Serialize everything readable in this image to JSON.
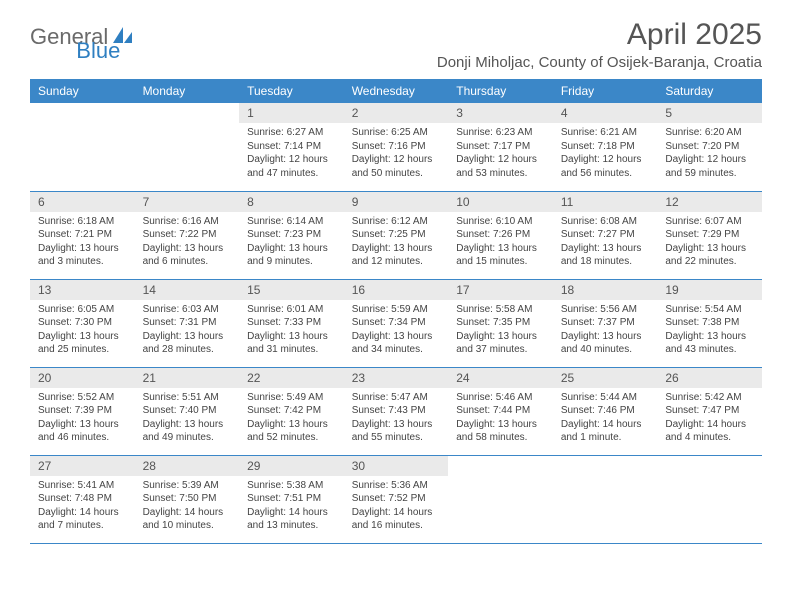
{
  "logo": {
    "text1": "General",
    "text2": "Blue"
  },
  "title": "April 2025",
  "location": "Donji Miholjac, County of Osijek-Baranja, Croatia",
  "dayHeaders": [
    "Sunday",
    "Monday",
    "Tuesday",
    "Wednesday",
    "Thursday",
    "Friday",
    "Saturday"
  ],
  "colors": {
    "headerBg": "#3b87c8",
    "dayNumBg": "#eaeaea",
    "borderColor": "#3b87c8"
  },
  "weeks": [
    [
      null,
      null,
      {
        "n": "1",
        "sr": "Sunrise: 6:27 AM",
        "ss": "Sunset: 7:14 PM",
        "dl": "Daylight: 12 hours and 47 minutes."
      },
      {
        "n": "2",
        "sr": "Sunrise: 6:25 AM",
        "ss": "Sunset: 7:16 PM",
        "dl": "Daylight: 12 hours and 50 minutes."
      },
      {
        "n": "3",
        "sr": "Sunrise: 6:23 AM",
        "ss": "Sunset: 7:17 PM",
        "dl": "Daylight: 12 hours and 53 minutes."
      },
      {
        "n": "4",
        "sr": "Sunrise: 6:21 AM",
        "ss": "Sunset: 7:18 PM",
        "dl": "Daylight: 12 hours and 56 minutes."
      },
      {
        "n": "5",
        "sr": "Sunrise: 6:20 AM",
        "ss": "Sunset: 7:20 PM",
        "dl": "Daylight: 12 hours and 59 minutes."
      }
    ],
    [
      {
        "n": "6",
        "sr": "Sunrise: 6:18 AM",
        "ss": "Sunset: 7:21 PM",
        "dl": "Daylight: 13 hours and 3 minutes."
      },
      {
        "n": "7",
        "sr": "Sunrise: 6:16 AM",
        "ss": "Sunset: 7:22 PM",
        "dl": "Daylight: 13 hours and 6 minutes."
      },
      {
        "n": "8",
        "sr": "Sunrise: 6:14 AM",
        "ss": "Sunset: 7:23 PM",
        "dl": "Daylight: 13 hours and 9 minutes."
      },
      {
        "n": "9",
        "sr": "Sunrise: 6:12 AM",
        "ss": "Sunset: 7:25 PM",
        "dl": "Daylight: 13 hours and 12 minutes."
      },
      {
        "n": "10",
        "sr": "Sunrise: 6:10 AM",
        "ss": "Sunset: 7:26 PM",
        "dl": "Daylight: 13 hours and 15 minutes."
      },
      {
        "n": "11",
        "sr": "Sunrise: 6:08 AM",
        "ss": "Sunset: 7:27 PM",
        "dl": "Daylight: 13 hours and 18 minutes."
      },
      {
        "n": "12",
        "sr": "Sunrise: 6:07 AM",
        "ss": "Sunset: 7:29 PM",
        "dl": "Daylight: 13 hours and 22 minutes."
      }
    ],
    [
      {
        "n": "13",
        "sr": "Sunrise: 6:05 AM",
        "ss": "Sunset: 7:30 PM",
        "dl": "Daylight: 13 hours and 25 minutes."
      },
      {
        "n": "14",
        "sr": "Sunrise: 6:03 AM",
        "ss": "Sunset: 7:31 PM",
        "dl": "Daylight: 13 hours and 28 minutes."
      },
      {
        "n": "15",
        "sr": "Sunrise: 6:01 AM",
        "ss": "Sunset: 7:33 PM",
        "dl": "Daylight: 13 hours and 31 minutes."
      },
      {
        "n": "16",
        "sr": "Sunrise: 5:59 AM",
        "ss": "Sunset: 7:34 PM",
        "dl": "Daylight: 13 hours and 34 minutes."
      },
      {
        "n": "17",
        "sr": "Sunrise: 5:58 AM",
        "ss": "Sunset: 7:35 PM",
        "dl": "Daylight: 13 hours and 37 minutes."
      },
      {
        "n": "18",
        "sr": "Sunrise: 5:56 AM",
        "ss": "Sunset: 7:37 PM",
        "dl": "Daylight: 13 hours and 40 minutes."
      },
      {
        "n": "19",
        "sr": "Sunrise: 5:54 AM",
        "ss": "Sunset: 7:38 PM",
        "dl": "Daylight: 13 hours and 43 minutes."
      }
    ],
    [
      {
        "n": "20",
        "sr": "Sunrise: 5:52 AM",
        "ss": "Sunset: 7:39 PM",
        "dl": "Daylight: 13 hours and 46 minutes."
      },
      {
        "n": "21",
        "sr": "Sunrise: 5:51 AM",
        "ss": "Sunset: 7:40 PM",
        "dl": "Daylight: 13 hours and 49 minutes."
      },
      {
        "n": "22",
        "sr": "Sunrise: 5:49 AM",
        "ss": "Sunset: 7:42 PM",
        "dl": "Daylight: 13 hours and 52 minutes."
      },
      {
        "n": "23",
        "sr": "Sunrise: 5:47 AM",
        "ss": "Sunset: 7:43 PM",
        "dl": "Daylight: 13 hours and 55 minutes."
      },
      {
        "n": "24",
        "sr": "Sunrise: 5:46 AM",
        "ss": "Sunset: 7:44 PM",
        "dl": "Daylight: 13 hours and 58 minutes."
      },
      {
        "n": "25",
        "sr": "Sunrise: 5:44 AM",
        "ss": "Sunset: 7:46 PM",
        "dl": "Daylight: 14 hours and 1 minute."
      },
      {
        "n": "26",
        "sr": "Sunrise: 5:42 AM",
        "ss": "Sunset: 7:47 PM",
        "dl": "Daylight: 14 hours and 4 minutes."
      }
    ],
    [
      {
        "n": "27",
        "sr": "Sunrise: 5:41 AM",
        "ss": "Sunset: 7:48 PM",
        "dl": "Daylight: 14 hours and 7 minutes."
      },
      {
        "n": "28",
        "sr": "Sunrise: 5:39 AM",
        "ss": "Sunset: 7:50 PM",
        "dl": "Daylight: 14 hours and 10 minutes."
      },
      {
        "n": "29",
        "sr": "Sunrise: 5:38 AM",
        "ss": "Sunset: 7:51 PM",
        "dl": "Daylight: 14 hours and 13 minutes."
      },
      {
        "n": "30",
        "sr": "Sunrise: 5:36 AM",
        "ss": "Sunset: 7:52 PM",
        "dl": "Daylight: 14 hours and 16 minutes."
      },
      null,
      null,
      null
    ]
  ]
}
